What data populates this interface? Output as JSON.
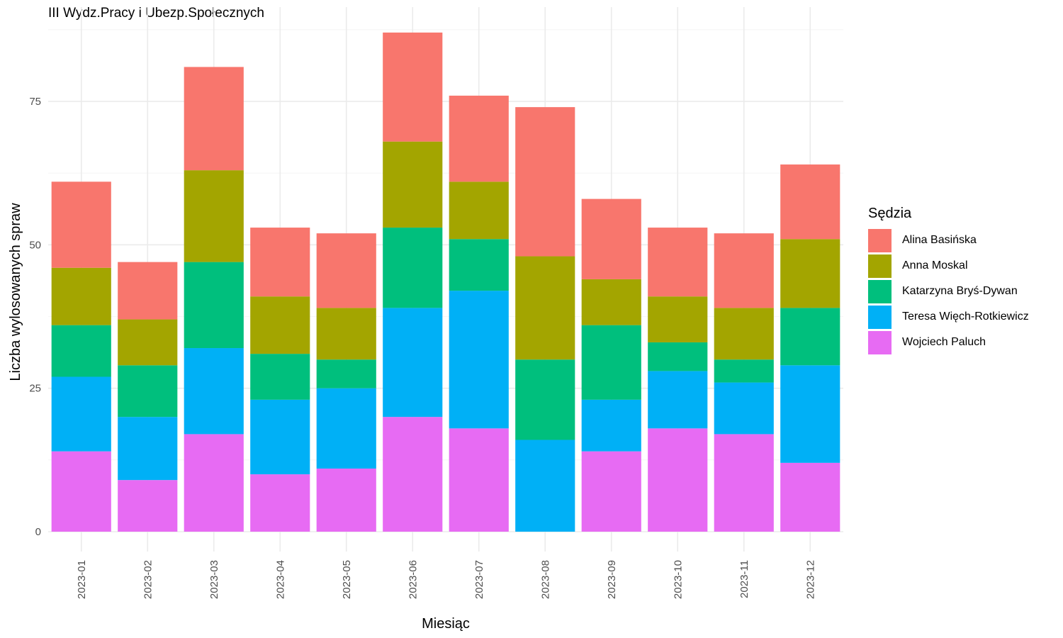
{
  "chart_data": {
    "type": "bar",
    "stacked": true,
    "title": "III Wydz.Pracy i Ubezp.Społecznych",
    "xlabel": "Miesiąc",
    "ylabel": "Liczba wylosowanych spraw",
    "ylim": [
      0,
      90
    ],
    "yticks": [
      0,
      25,
      50,
      75
    ],
    "grid": true,
    "legend_title": "Sędzia",
    "legend_position": "right",
    "categories": [
      "2023-01",
      "2023-02",
      "2023-03",
      "2023-04",
      "2023-05",
      "2023-06",
      "2023-07",
      "2023-08",
      "2023-09",
      "2023-10",
      "2023-11",
      "2023-12"
    ],
    "series": [
      {
        "name": "Alina Basińska",
        "color": "#F8766D",
        "values": [
          15,
          10,
          18,
          12,
          13,
          19,
          15,
          26,
          14,
          12,
          13,
          13
        ]
      },
      {
        "name": "Anna Moskal",
        "color": "#A3A500",
        "values": [
          10,
          8,
          16,
          10,
          9,
          15,
          10,
          18,
          8,
          8,
          9,
          12
        ]
      },
      {
        "name": "Katarzyna Bryś-Dywan",
        "color": "#00BF7D",
        "values": [
          9,
          9,
          15,
          8,
          5,
          14,
          9,
          14,
          13,
          5,
          4,
          10
        ]
      },
      {
        "name": "Teresa Więch-Rotkiewicz",
        "color": "#00B0F6",
        "values": [
          13,
          11,
          15,
          13,
          14,
          19,
          24,
          16,
          9,
          10,
          9,
          17
        ]
      },
      {
        "name": "Wojciech Paluch",
        "color": "#E76BF3",
        "values": [
          14,
          9,
          17,
          10,
          11,
          20,
          18,
          0,
          14,
          18,
          17,
          12
        ]
      }
    ]
  }
}
